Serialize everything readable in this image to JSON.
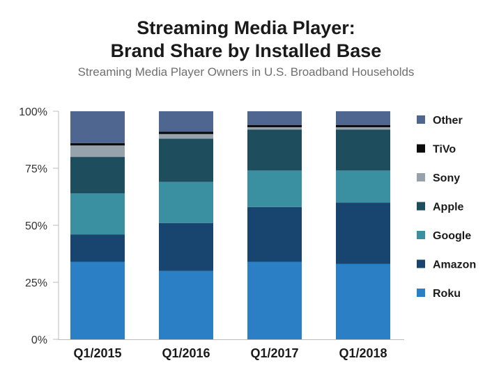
{
  "chart_data": {
    "type": "bar",
    "stacked": true,
    "title_lines": [
      "Streaming Media Player:",
      "Brand Share by Installed Base"
    ],
    "subtitle": "Streaming Media Player Owners in U.S. Broadband Households",
    "xlabel": "",
    "ylabel": "",
    "ylim": [
      0,
      100
    ],
    "y_ticks": [
      0,
      25,
      50,
      75,
      100
    ],
    "y_tick_labels": [
      "0%",
      "25%",
      "50%",
      "75%",
      "100%"
    ],
    "categories": [
      "Q1/2015",
      "Q1/2016",
      "Q1/2017",
      "Q1/2018"
    ],
    "series": [
      {
        "name": "Roku",
        "color": "#2b7fc4",
        "values": [
          34,
          30,
          34,
          33
        ]
      },
      {
        "name": "Amazon",
        "color": "#17456f",
        "values": [
          12,
          21,
          24,
          27
        ]
      },
      {
        "name": "Google",
        "color": "#3a8fa1",
        "values": [
          18,
          18,
          16,
          14
        ]
      },
      {
        "name": "Apple",
        "color": "#1e4e5e",
        "values": [
          16,
          19,
          18,
          18
        ]
      },
      {
        "name": "Sony",
        "color": "#96a3ad",
        "values": [
          5,
          2,
          1,
          1
        ]
      },
      {
        "name": "TiVo",
        "color": "#0b0b0b",
        "values": [
          1,
          1,
          1,
          1
        ]
      },
      {
        "name": "Other",
        "color": "#4f6691",
        "values": [
          14,
          9,
          6,
          6
        ]
      }
    ],
    "legend_position": "right",
    "legend_order": [
      "Other",
      "TiVo",
      "Sony",
      "Apple",
      "Google",
      "Amazon",
      "Roku"
    ],
    "grid": false
  }
}
